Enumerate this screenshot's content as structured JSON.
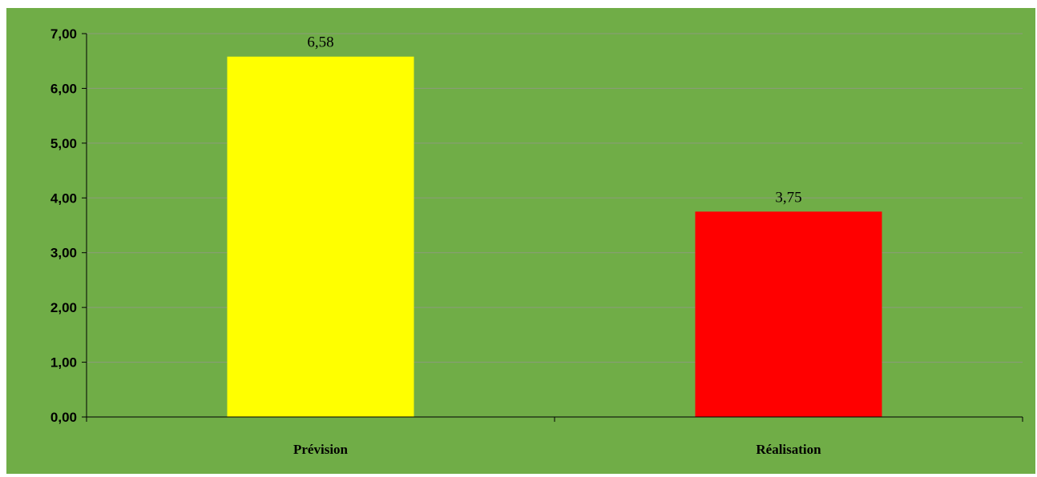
{
  "chart_data": {
    "type": "bar",
    "categories": [
      "Prévision",
      "Réalisation"
    ],
    "values": [
      6.58,
      3.75
    ],
    "data_labels": [
      "6,58",
      "3,75"
    ],
    "bar_colors": [
      "#ffff00",
      "#ff0000"
    ],
    "background_color": "#70ad47",
    "gridline_color": "#8c9b7c",
    "ylim": [
      0,
      7
    ],
    "yticks": [
      0,
      1,
      2,
      3,
      4,
      5,
      6,
      7
    ],
    "ytick_labels": [
      "0,00",
      "1,00",
      "2,00",
      "3,00",
      "4,00",
      "5,00",
      "6,00",
      "7,00"
    ],
    "grid": true,
    "legend": "none",
    "title": "",
    "xlabel": "",
    "ylabel": ""
  }
}
